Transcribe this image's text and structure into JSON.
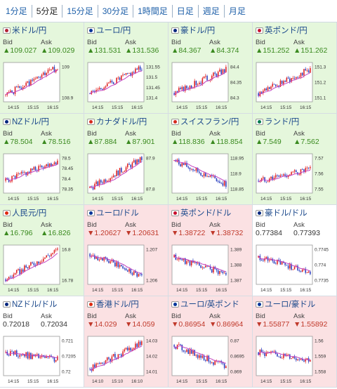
{
  "tabs": [
    {
      "label": "1分足",
      "active": false
    },
    {
      "label": "5分足",
      "active": true
    },
    {
      "label": "15分足",
      "active": false
    },
    {
      "label": "30分足",
      "active": false
    },
    {
      "label": "1時間足",
      "active": false
    },
    {
      "label": "日足",
      "active": false
    },
    {
      "label": "週足",
      "active": false
    },
    {
      "label": "月足",
      "active": false
    }
  ],
  "labels": {
    "bid": "Bid",
    "ask": "Ask"
  },
  "colors": {
    "up_bg": "#e5f7dc",
    "down_bg": "#fbe1e3",
    "candle_up": "#e02020",
    "candle_down": "#2a3fbf",
    "ma": "#c040c0"
  },
  "pairs": [
    {
      "name": "米ドル/円",
      "dir": "up",
      "bid": "▲109.027",
      "ask": "▲109.029",
      "flag": "#b22234",
      "x_ticks": [
        "14:15",
        "15:15",
        "16:15"
      ],
      "y_ticks": [
        "109",
        "108.9"
      ],
      "trend": [
        0.15,
        0.9
      ]
    },
    {
      "name": "ユーロ/円",
      "dir": "up",
      "bid": "▲131.531",
      "ask": "▲131.536",
      "flag": "#003399",
      "x_ticks": [
        "14:15",
        "15:15",
        "16:15"
      ],
      "y_ticks": [
        "131.55",
        "131.5",
        "131.45",
        "131.4"
      ],
      "trend": [
        0.2,
        0.9
      ]
    },
    {
      "name": "豪ドル/円",
      "dir": "up",
      "bid": "▲84.367",
      "ask": "▲84.374",
      "flag": "#00247d",
      "x_ticks": [
        "14:15",
        "15:15",
        "16:15"
      ],
      "y_ticks": [
        "84.4",
        "84.35",
        "84.3"
      ],
      "trend": [
        0.2,
        0.85
      ]
    },
    {
      "name": "英ポンド/円",
      "dir": "up",
      "bid": "▲151.252",
      "ask": "▲151.262",
      "flag": "#c8102e",
      "x_ticks": [
        "14:15",
        "15:15",
        "16:15"
      ],
      "y_ticks": [
        "151.3",
        "151.2",
        "151.1"
      ],
      "trend": [
        0.2,
        0.85
      ]
    },
    {
      "name": "NZドル/円",
      "dir": "up",
      "bid": "▲78.504",
      "ask": "▲78.516",
      "flag": "#00247d",
      "x_ticks": [
        "14:15",
        "15:15",
        "16:15"
      ],
      "y_ticks": [
        "78.5",
        "78.45",
        "78.4",
        "78.35"
      ],
      "trend": [
        0.3,
        0.85
      ]
    },
    {
      "name": "カナダドル/円",
      "dir": "up",
      "bid": "▲87.884",
      "ask": "▲87.901",
      "flag": "#d52b1e",
      "x_ticks": [
        "14:15",
        "15:15",
        "16:15"
      ],
      "y_ticks": [
        "87.9",
        "87.8"
      ],
      "trend": [
        0.1,
        0.9
      ]
    },
    {
      "name": "スイスフラン/円",
      "dir": "up",
      "bid": "▲118.836",
      "ask": "▲118.854",
      "flag": "#d52b1e",
      "x_ticks": [
        "14:15",
        "15:15",
        "16:15"
      ],
      "y_ticks": [
        "118.95",
        "118.9",
        "118.85"
      ],
      "trend": [
        0.85,
        0.2
      ]
    },
    {
      "name": "ランド/円",
      "dir": "up",
      "bid": "▲7.549",
      "ask": "▲7.562",
      "flag": "#007a4d",
      "x_ticks": [
        "14:15",
        "15:15",
        "16:15"
      ],
      "y_ticks": [
        "7.57",
        "7.56",
        "7.55"
      ],
      "trend": [
        0.3,
        0.6
      ]
    },
    {
      "name": "人民元/円",
      "dir": "up",
      "bid": "▲16.796",
      "ask": "▲16.826",
      "flag": "#de2910",
      "x_ticks": [
        "14:15",
        "15:15",
        "16:15"
      ],
      "y_ticks": [
        "16.8",
        "16.78"
      ],
      "trend": [
        0.1,
        0.9
      ]
    },
    {
      "name": "ユーロ/ドル",
      "dir": "down",
      "bid": "▼1.20627",
      "ask": "▼1.20631",
      "flag": "#003399",
      "x_ticks": [
        "14:15",
        "15:15",
        "16:15"
      ],
      "y_ticks": [
        "1.207",
        "1.206"
      ],
      "trend": [
        0.8,
        0.2
      ]
    },
    {
      "name": "英ポンド/ドル",
      "dir": "down",
      "bid": "▼1.38722",
      "ask": "▼1.38732",
      "flag": "#c8102e",
      "x_ticks": [
        "14:15",
        "15:15",
        "16:15"
      ],
      "y_ticks": [
        "1.389",
        "1.388",
        "1.387"
      ],
      "trend": [
        0.7,
        0.25
      ]
    },
    {
      "name": "豪ドル/ドル",
      "dir": "flat",
      "bid": "0.77384",
      "ask": "0.77393",
      "flag": "#00247d",
      "x_ticks": [
        "14:15",
        "15:15",
        "16:15"
      ],
      "y_ticks": [
        "0.7745",
        "0.774",
        "0.7735"
      ],
      "trend": [
        0.7,
        0.3
      ]
    },
    {
      "name": "NZドル/ドル",
      "dir": "flat",
      "bid": "0.72018",
      "ask": "0.72034",
      "flag": "#00247d",
      "x_ticks": [
        "14:15",
        "15:15",
        "16:15"
      ],
      "y_ticks": [
        "0.721",
        "0.7205",
        "0.72"
      ],
      "trend": [
        0.6,
        0.4
      ]
    },
    {
      "name": "香港ドル/円",
      "dir": "down",
      "bid": "▼14.029",
      "ask": "▼14.059",
      "flag": "#de2910",
      "x_ticks": [
        "14:10",
        "15:10",
        "16:10"
      ],
      "y_ticks": [
        "14.03",
        "14.02",
        "14.01"
      ],
      "trend": [
        0.15,
        0.85
      ]
    },
    {
      "name": "ユーロ/英ポンド",
      "dir": "down",
      "bid": "▼0.86954",
      "ask": "▼0.86964",
      "flag": "#003399",
      "x_ticks": [
        "14:15",
        "15:15",
        "16:15"
      ],
      "y_ticks": [
        "0.87",
        "0.8695",
        "0.869"
      ],
      "trend": [
        0.8,
        0.2
      ]
    },
    {
      "name": "ユーロ/豪ドル",
      "dir": "down",
      "bid": "▼1.55877",
      "ask": "▼1.55892",
      "flag": "#003399",
      "x_ticks": [
        "14:15",
        "15:15",
        "16:15"
      ],
      "y_ticks": [
        "1.56",
        "1.559",
        "1.558"
      ],
      "trend": [
        0.6,
        0.4
      ]
    }
  ]
}
